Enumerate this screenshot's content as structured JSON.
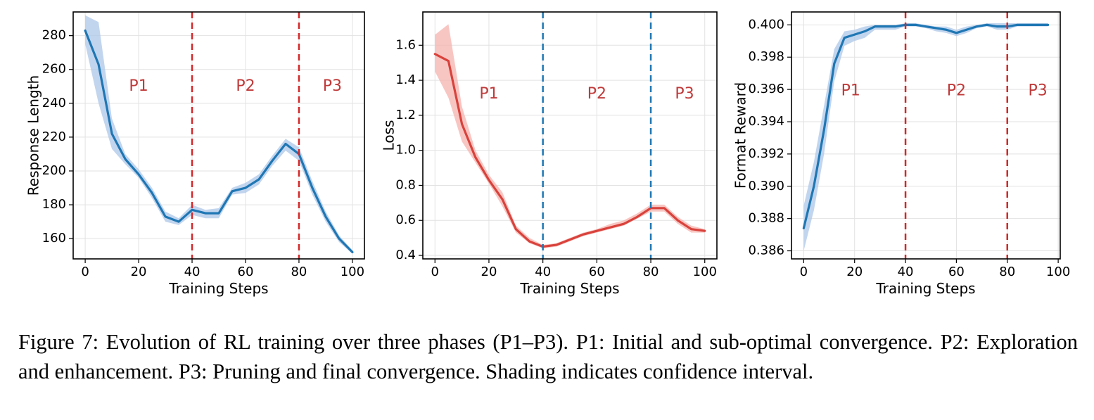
{
  "chart_data": [
    {
      "type": "line",
      "id": "response-length",
      "xlabel": "Training Steps",
      "ylabel": "Response Length",
      "xlim": [
        -4.5,
        104.5
      ],
      "ylim": [
        148,
        294
      ],
      "xticks": [
        0,
        20,
        40,
        60,
        80,
        100
      ],
      "yticks": [
        160,
        180,
        200,
        220,
        240,
        260,
        280
      ],
      "ytick_labels": [
        "160",
        "180",
        "200",
        "220",
        "240",
        "260",
        "280"
      ],
      "grid": true,
      "line_color": "#1f77b4",
      "band_color": "#aec7e8",
      "vline_color": "#d62728",
      "phase_color": "#c03a3a",
      "series": [
        {
          "name": "Response Length",
          "x": [
            0,
            5,
            10,
            15,
            20,
            25,
            30,
            35,
            40,
            45,
            50,
            55,
            60,
            65,
            70,
            75,
            80,
            85,
            90,
            95,
            100
          ],
          "y": [
            283,
            263,
            222,
            207,
            198,
            187,
            173,
            170,
            177,
            175,
            175,
            188,
            190,
            195,
            206,
            216,
            210,
            190,
            173,
            160,
            152
          ],
          "lower": [
            275,
            240,
            213,
            204,
            196,
            184,
            170,
            168,
            174,
            172,
            172,
            186,
            187,
            192,
            203,
            212,
            206,
            186,
            170,
            158,
            151
          ],
          "upper": [
            292,
            288,
            231,
            210,
            201,
            190,
            176,
            172,
            180,
            177,
            178,
            190,
            193,
            198,
            209,
            219,
            214,
            194,
            176,
            162,
            153
          ]
        }
      ],
      "vlines": [
        40,
        80
      ],
      "phases": [
        {
          "label": "P1",
          "x": 20,
          "y": 250
        },
        {
          "label": "P2",
          "x": 60,
          "y": 250
        },
        {
          "label": "P3",
          "x": 92.5,
          "y": 250
        }
      ]
    },
    {
      "type": "line",
      "id": "loss",
      "xlabel": "Training Steps",
      "ylabel": "Loss",
      "xlim": [
        -4.5,
        104.5
      ],
      "ylim": [
        0.38,
        1.79
      ],
      "xticks": [
        0,
        20,
        40,
        60,
        80,
        100
      ],
      "yticks": [
        0.4,
        0.6,
        0.8,
        1.0,
        1.2,
        1.4,
        1.6
      ],
      "ytick_labels": [
        "0.4",
        "0.6",
        "0.8",
        "1.0",
        "1.2",
        "1.4",
        "1.6"
      ],
      "grid": true,
      "line_color": "#d9423c",
      "band_color": "#f6b3ae",
      "vline_color": "#1f77b4",
      "phase_color": "#c03a3a",
      "series": [
        {
          "name": "Loss",
          "x": [
            0,
            5,
            10,
            15,
            20,
            25,
            30,
            35,
            40,
            45,
            50,
            55,
            60,
            65,
            70,
            75,
            80,
            85,
            90,
            95,
            100
          ],
          "y": [
            1.55,
            1.51,
            1.15,
            0.96,
            0.83,
            0.72,
            0.55,
            0.48,
            0.45,
            0.46,
            0.49,
            0.52,
            0.54,
            0.56,
            0.58,
            0.62,
            0.67,
            0.67,
            0.6,
            0.55,
            0.54
          ],
          "lower": [
            1.45,
            1.3,
            1.05,
            0.93,
            0.81,
            0.68,
            0.53,
            0.47,
            0.44,
            0.45,
            0.48,
            0.51,
            0.53,
            0.55,
            0.57,
            0.61,
            0.65,
            0.65,
            0.58,
            0.53,
            0.53
          ],
          "upper": [
            1.66,
            1.72,
            1.25,
            1.0,
            0.86,
            0.76,
            0.57,
            0.5,
            0.46,
            0.47,
            0.5,
            0.53,
            0.55,
            0.58,
            0.6,
            0.64,
            0.69,
            0.69,
            0.62,
            0.57,
            0.55
          ]
        }
      ],
      "vlines": [
        40,
        80
      ],
      "phases": [
        {
          "label": "P1",
          "x": 20,
          "y": 1.32
        },
        {
          "label": "P2",
          "x": 60,
          "y": 1.32
        },
        {
          "label": "P3",
          "x": 92.5,
          "y": 1.32
        }
      ]
    },
    {
      "type": "line",
      "id": "format-reward",
      "xlabel": "Training Steps",
      "ylabel": "Format Reward",
      "xlim": [
        -4.8,
        100.8
      ],
      "ylim": [
        0.3855,
        0.4008
      ],
      "xticks": [
        0,
        20,
        40,
        60,
        80,
        100
      ],
      "yticks": [
        0.386,
        0.388,
        0.39,
        0.392,
        0.394,
        0.396,
        0.398,
        0.4
      ],
      "ytick_labels": [
        "0.386",
        "0.388",
        "0.390",
        "0.392",
        "0.394",
        "0.396",
        "0.398",
        "0.400"
      ],
      "grid": true,
      "line_color": "#1f77b4",
      "band_color": "#aec7e8",
      "vline_color": "#d62728",
      "phase_color": "#c03a3a",
      "series": [
        {
          "name": "Format Reward",
          "x": [
            0,
            4,
            8,
            12,
            16,
            20,
            24,
            28,
            32,
            36,
            40,
            44,
            48,
            52,
            56,
            60,
            64,
            68,
            72,
            76,
            80,
            84,
            88,
            92,
            96
          ],
          "y": [
            0.3874,
            0.39,
            0.3935,
            0.3976,
            0.3992,
            0.3994,
            0.3996,
            0.3999,
            0.3999,
            0.3999,
            0.4,
            0.4,
            0.3999,
            0.3998,
            0.3997,
            0.3995,
            0.3997,
            0.3999,
            0.4,
            0.3999,
            0.3999,
            0.4,
            0.4,
            0.4,
            0.4
          ],
          "lower": [
            0.386,
            0.3885,
            0.392,
            0.3965,
            0.3987,
            0.399,
            0.3992,
            0.3997,
            0.3997,
            0.3997,
            0.3999,
            0.3999,
            0.3998,
            0.3996,
            0.3995,
            0.3993,
            0.3995,
            0.3998,
            0.3999,
            0.3997,
            0.3997,
            0.3999,
            0.3999,
            0.3999,
            0.3999
          ],
          "upper": [
            0.3888,
            0.3915,
            0.395,
            0.3985,
            0.3996,
            0.3997,
            0.3999,
            0.4,
            0.4,
            0.4,
            0.4001,
            0.4001,
            0.4,
            0.3999,
            0.3999,
            0.3997,
            0.3999,
            0.4,
            0.4001,
            0.4001,
            0.4001,
            0.4001,
            0.4001,
            0.4001,
            0.4001
          ]
        }
      ],
      "vlines": [
        40,
        80
      ],
      "phases": [
        {
          "label": "P1",
          "x": 18.5,
          "y": 0.3959
        },
        {
          "label": "P2",
          "x": 60,
          "y": 0.3959
        },
        {
          "label": "P3",
          "x": 92,
          "y": 0.3959
        }
      ]
    }
  ],
  "caption": "Figure 7: Evolution of RL training over three phases (P1–P3). P1: Initial and sub-optimal convergence. P2: Exploration and enhancement. P3: Pruning and final convergence. Shading indicates confidence interval."
}
